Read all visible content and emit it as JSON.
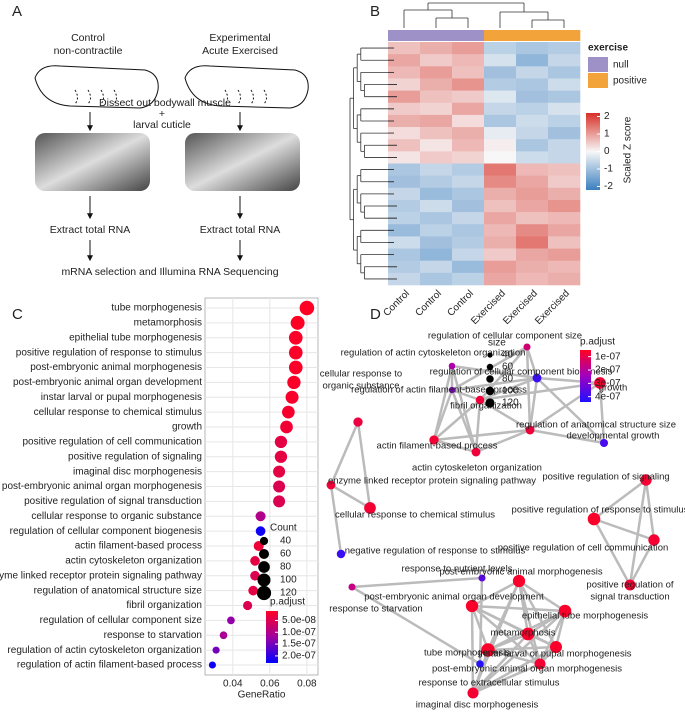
{
  "panel_labels": [
    "A",
    "B",
    "C",
    "D"
  ],
  "diagram": {
    "left_title": [
      "Control",
      "non-contractile"
    ],
    "right_title": [
      "Experimental",
      "Acute Exercised"
    ],
    "dissect": "Dissect out bodywall muscle",
    "plus": "+",
    "cuticle": "larval cuticle",
    "extract": [
      "Extract total RNA",
      "Extract total RNA"
    ],
    "sequencing": "mRNA selection and Illumina RNA Sequencing"
  },
  "chart_data": [
    {
      "type": "heatmap",
      "categories": [
        "Control",
        "Control",
        "Control",
        "Exercised",
        "Exercised",
        "Exercised"
      ],
      "annotation": {
        "title": "exercise",
        "levels": [
          {
            "name": "null",
            "color": "#9d91c8"
          },
          {
            "name": "positive",
            "color": "#f2a33a"
          }
        ],
        "assignment": [
          "null",
          "null",
          "null",
          "positive",
          "positive",
          "positive"
        ]
      },
      "colorbar": {
        "title": "Scaled Z score",
        "lim": [
          -2.2,
          2.2
        ],
        "ticks": [
          2,
          1,
          0,
          -1,
          -2
        ],
        "colors": [
          "#3b7fc0",
          "#f7f7f7",
          "#d73027"
        ]
      },
      "rows": [
        [
          0.6,
          0.8,
          1.0,
          -0.7,
          -0.9,
          -0.8
        ],
        [
          0.9,
          0.5,
          0.7,
          -0.4,
          -1.2,
          -0.6
        ],
        [
          0.7,
          1.0,
          0.6,
          -1.0,
          -0.6,
          -0.9
        ],
        [
          0.4,
          0.8,
          1.1,
          -0.8,
          -0.9,
          -0.5
        ],
        [
          1.0,
          0.6,
          0.5,
          -0.3,
          -1.0,
          -0.9
        ],
        [
          0.5,
          0.4,
          0.9,
          -0.6,
          -0.7,
          -0.4
        ],
        [
          0.8,
          0.9,
          0.3,
          -0.9,
          -0.5,
          -0.7
        ],
        [
          0.3,
          0.6,
          0.8,
          -0.2,
          -0.6,
          -1.0
        ],
        [
          0.6,
          0.2,
          0.7,
          0.1,
          -0.9,
          -0.6
        ],
        [
          0.2,
          0.5,
          0.4,
          0.0,
          -0.5,
          -0.6
        ],
        [
          -0.9,
          -0.6,
          -0.8,
          1.4,
          0.7,
          0.6
        ],
        [
          -1.0,
          -0.8,
          -0.6,
          1.2,
          0.9,
          0.5
        ],
        [
          -0.6,
          -1.1,
          -0.9,
          0.8,
          1.0,
          0.8
        ],
        [
          -0.8,
          -0.5,
          -1.0,
          0.6,
          0.9,
          1.1
        ],
        [
          -0.7,
          -0.9,
          -0.6,
          0.9,
          0.6,
          0.7
        ],
        [
          -1.1,
          -0.7,
          -0.9,
          0.7,
          1.2,
          0.9
        ],
        [
          -0.5,
          -1.0,
          -0.8,
          0.8,
          1.4,
          0.6
        ],
        [
          -0.9,
          -1.2,
          -0.6,
          0.5,
          0.9,
          1.0
        ],
        [
          -0.8,
          -0.6,
          -1.1,
          1.0,
          0.8,
          0.7
        ],
        [
          -0.6,
          -0.9,
          -0.7,
          0.9,
          0.7,
          0.8
        ]
      ]
    },
    {
      "type": "dot",
      "xlabel": "GeneRatio",
      "xlim": [
        0.025,
        0.086
      ],
      "xticks": [
        0.04,
        0.06,
        0.08
      ],
      "grid": true,
      "categories": [
        "tube morphogenesis",
        "metamorphosis",
        "epithelial tube morphogenesis",
        "positive regulation of response to stimulus",
        "post-embryonic animal morphogenesis",
        "post-embryonic animal organ development",
        "instar larval or pupal morphogenesis",
        "cellular response to chemical stimulus",
        "growth",
        "positive regulation of cell communication",
        "positive regulation of signaling",
        "imaginal disc morphogenesis",
        "post-embryonic animal organ morphogenesis",
        "positive regulation of signal transduction",
        "cellular response to organic substance",
        "regulation of cellular component biogenesis",
        "actin filament-based process",
        "actin cytoskeleton organization",
        "enzyme linked receptor protein signaling pathway",
        "regulation of anatomical structure size",
        "fibril organization",
        "regulation of cellular component size",
        "response to starvation",
        "regulation of actin cytoskeleton organization",
        "regulation of actin filament-based process"
      ],
      "values": [
        0.08,
        0.075,
        0.074,
        0.074,
        0.074,
        0.073,
        0.072,
        0.07,
        0.069,
        0.066,
        0.066,
        0.065,
        0.065,
        0.065,
        0.055,
        0.055,
        0.054,
        0.052,
        0.052,
        0.051,
        0.048,
        0.039,
        0.035,
        0.031,
        0.029
      ],
      "counts": [
        125,
        115,
        110,
        110,
        110,
        105,
        100,
        95,
        95,
        90,
        90,
        85,
        85,
        85,
        60,
        55,
        60,
        55,
        55,
        55,
        50,
        35,
        35,
        30,
        30
      ],
      "p_adjust": [
        1.2e-08,
        1.2e-08,
        1.5e-08,
        1.5e-08,
        1.5e-08,
        1.5e-08,
        1.8e-08,
        2e-08,
        2.5e-08,
        4e-08,
        4e-08,
        4e-08,
        5e-08,
        5e-08,
        1e-07,
        2.2e-07,
        3e-08,
        4e-08,
        5e-08,
        4e-08,
        5e-08,
        1.3e-07,
        1.1e-07,
        1.5e-07,
        2.2e-07
      ],
      "size_legend": {
        "title": "Count",
        "values": [
          40,
          60,
          80,
          100,
          120
        ]
      },
      "color_legend": {
        "title": "p.adjust",
        "lim": [
          1e-08,
          2.3e-07
        ],
        "colors": [
          "#ff0022",
          "#a000a0",
          "#0000ff"
        ],
        "ticks": [
          {
            "value": 5e-08,
            "label": "5.0e-08"
          },
          {
            "value": 1e-07,
            "label": "1.0e-07"
          },
          {
            "value": 1.5e-07,
            "label": "1.5e-07"
          },
          {
            "value": 2e-07,
            "label": "2.0e-07"
          }
        ]
      }
    },
    {
      "type": "network",
      "nodes": [
        {
          "label": "regulation of cellular component size",
          "count": 35,
          "p_adjust": 1.5e-07
        },
        {
          "label": "regulation of actin cytoskeleton organization",
          "count": 30,
          "p_adjust": 2.2e-07
        },
        {
          "label": "regulation of cellular component biogenesis",
          "count": 55,
          "p_adjust": 4e-07
        },
        {
          "label": "regulation of actin filament-based process",
          "count": 28,
          "p_adjust": 2.8e-07
        },
        {
          "label": "growth",
          "count": 95,
          "p_adjust": 7e-08
        },
        {
          "label": "fibril organization",
          "count": 50,
          "p_adjust": 8e-08
        },
        {
          "label": "regulation of anatomical structure size",
          "count": 55,
          "p_adjust": 8e-08
        },
        {
          "label": "developmental growth",
          "count": 45,
          "p_adjust": 3.8e-07
        },
        {
          "label": "actin filament-based process",
          "count": 60,
          "p_adjust": 7e-08
        },
        {
          "label": "actin cytoskeleton organization",
          "count": 55,
          "p_adjust": 8e-08
        },
        {
          "label": [
            "cellular response to",
            "organic substance"
          ],
          "count": 60,
          "p_adjust": 9e-08
        },
        {
          "label": "enzyme linked receptor protein signaling pathway",
          "count": 55,
          "p_adjust": 8e-08
        },
        {
          "label": "cellular response to chemical stimulus",
          "count": 95,
          "p_adjust": 7e-08
        },
        {
          "label": "negative regulation of response to stimulus",
          "count": 50,
          "p_adjust": 4e-07
        },
        {
          "label": "positive regulation of signaling",
          "count": 90,
          "p_adjust": 7e-08
        },
        {
          "label": "positive regulation of response to stimulus",
          "count": 110,
          "p_adjust": 6e-08
        },
        {
          "label": "positive regulation of cell communication",
          "count": 90,
          "p_adjust": 7e-08
        },
        {
          "label": [
            "positive regulation of",
            "signal transduction"
          ],
          "count": 85,
          "p_adjust": 7e-08
        },
        {
          "label": "response to nutrient levels",
          "count": 35,
          "p_adjust": 3.5e-07
        },
        {
          "label": "response to starvation",
          "count": 35,
          "p_adjust": 1.7e-07
        },
        {
          "label": "response to extracellular stimulus",
          "count": 40,
          "p_adjust": 4.3e-07
        },
        {
          "label": "post-embryonic animal morphogenesis",
          "count": 105,
          "p_adjust": 6e-08
        },
        {
          "label": "post-embryonic animal organ development",
          "count": 105,
          "p_adjust": 6e-08
        },
        {
          "label": "epithelial tube morphogenesis",
          "count": 110,
          "p_adjust": 6e-08
        },
        {
          "label": "metamorphosis",
          "count": 115,
          "p_adjust": 6e-08
        },
        {
          "label": "instar larval or pupal morphogenesis",
          "count": 100,
          "p_adjust": 6e-08
        },
        {
          "label": "tube morphogenesis",
          "count": 125,
          "p_adjust": 6e-08
        },
        {
          "label": "post-embryonic animal organ morphogenesis",
          "count": 85,
          "p_adjust": 7e-08
        },
        {
          "label": "imaginal disc morphogenesis",
          "count": 85,
          "p_adjust": 7e-08
        }
      ],
      "size_legend": {
        "title": "size",
        "values": [
          40,
          60,
          80,
          100,
          120
        ]
      },
      "color_legend": {
        "title": "p.adjust",
        "lim": [
          5e-08,
          4.4e-07
        ],
        "colors": [
          "#ff0022",
          "#a000c0",
          "#2010ff"
        ],
        "ticks": [
          {
            "value": 1e-07,
            "label": "1e-07"
          },
          {
            "value": 2e-07,
            "label": "2e-07"
          },
          {
            "value": 3e-07,
            "label": "3e-07"
          },
          {
            "value": 4e-07,
            "label": "4e-07"
          }
        ]
      }
    }
  ]
}
